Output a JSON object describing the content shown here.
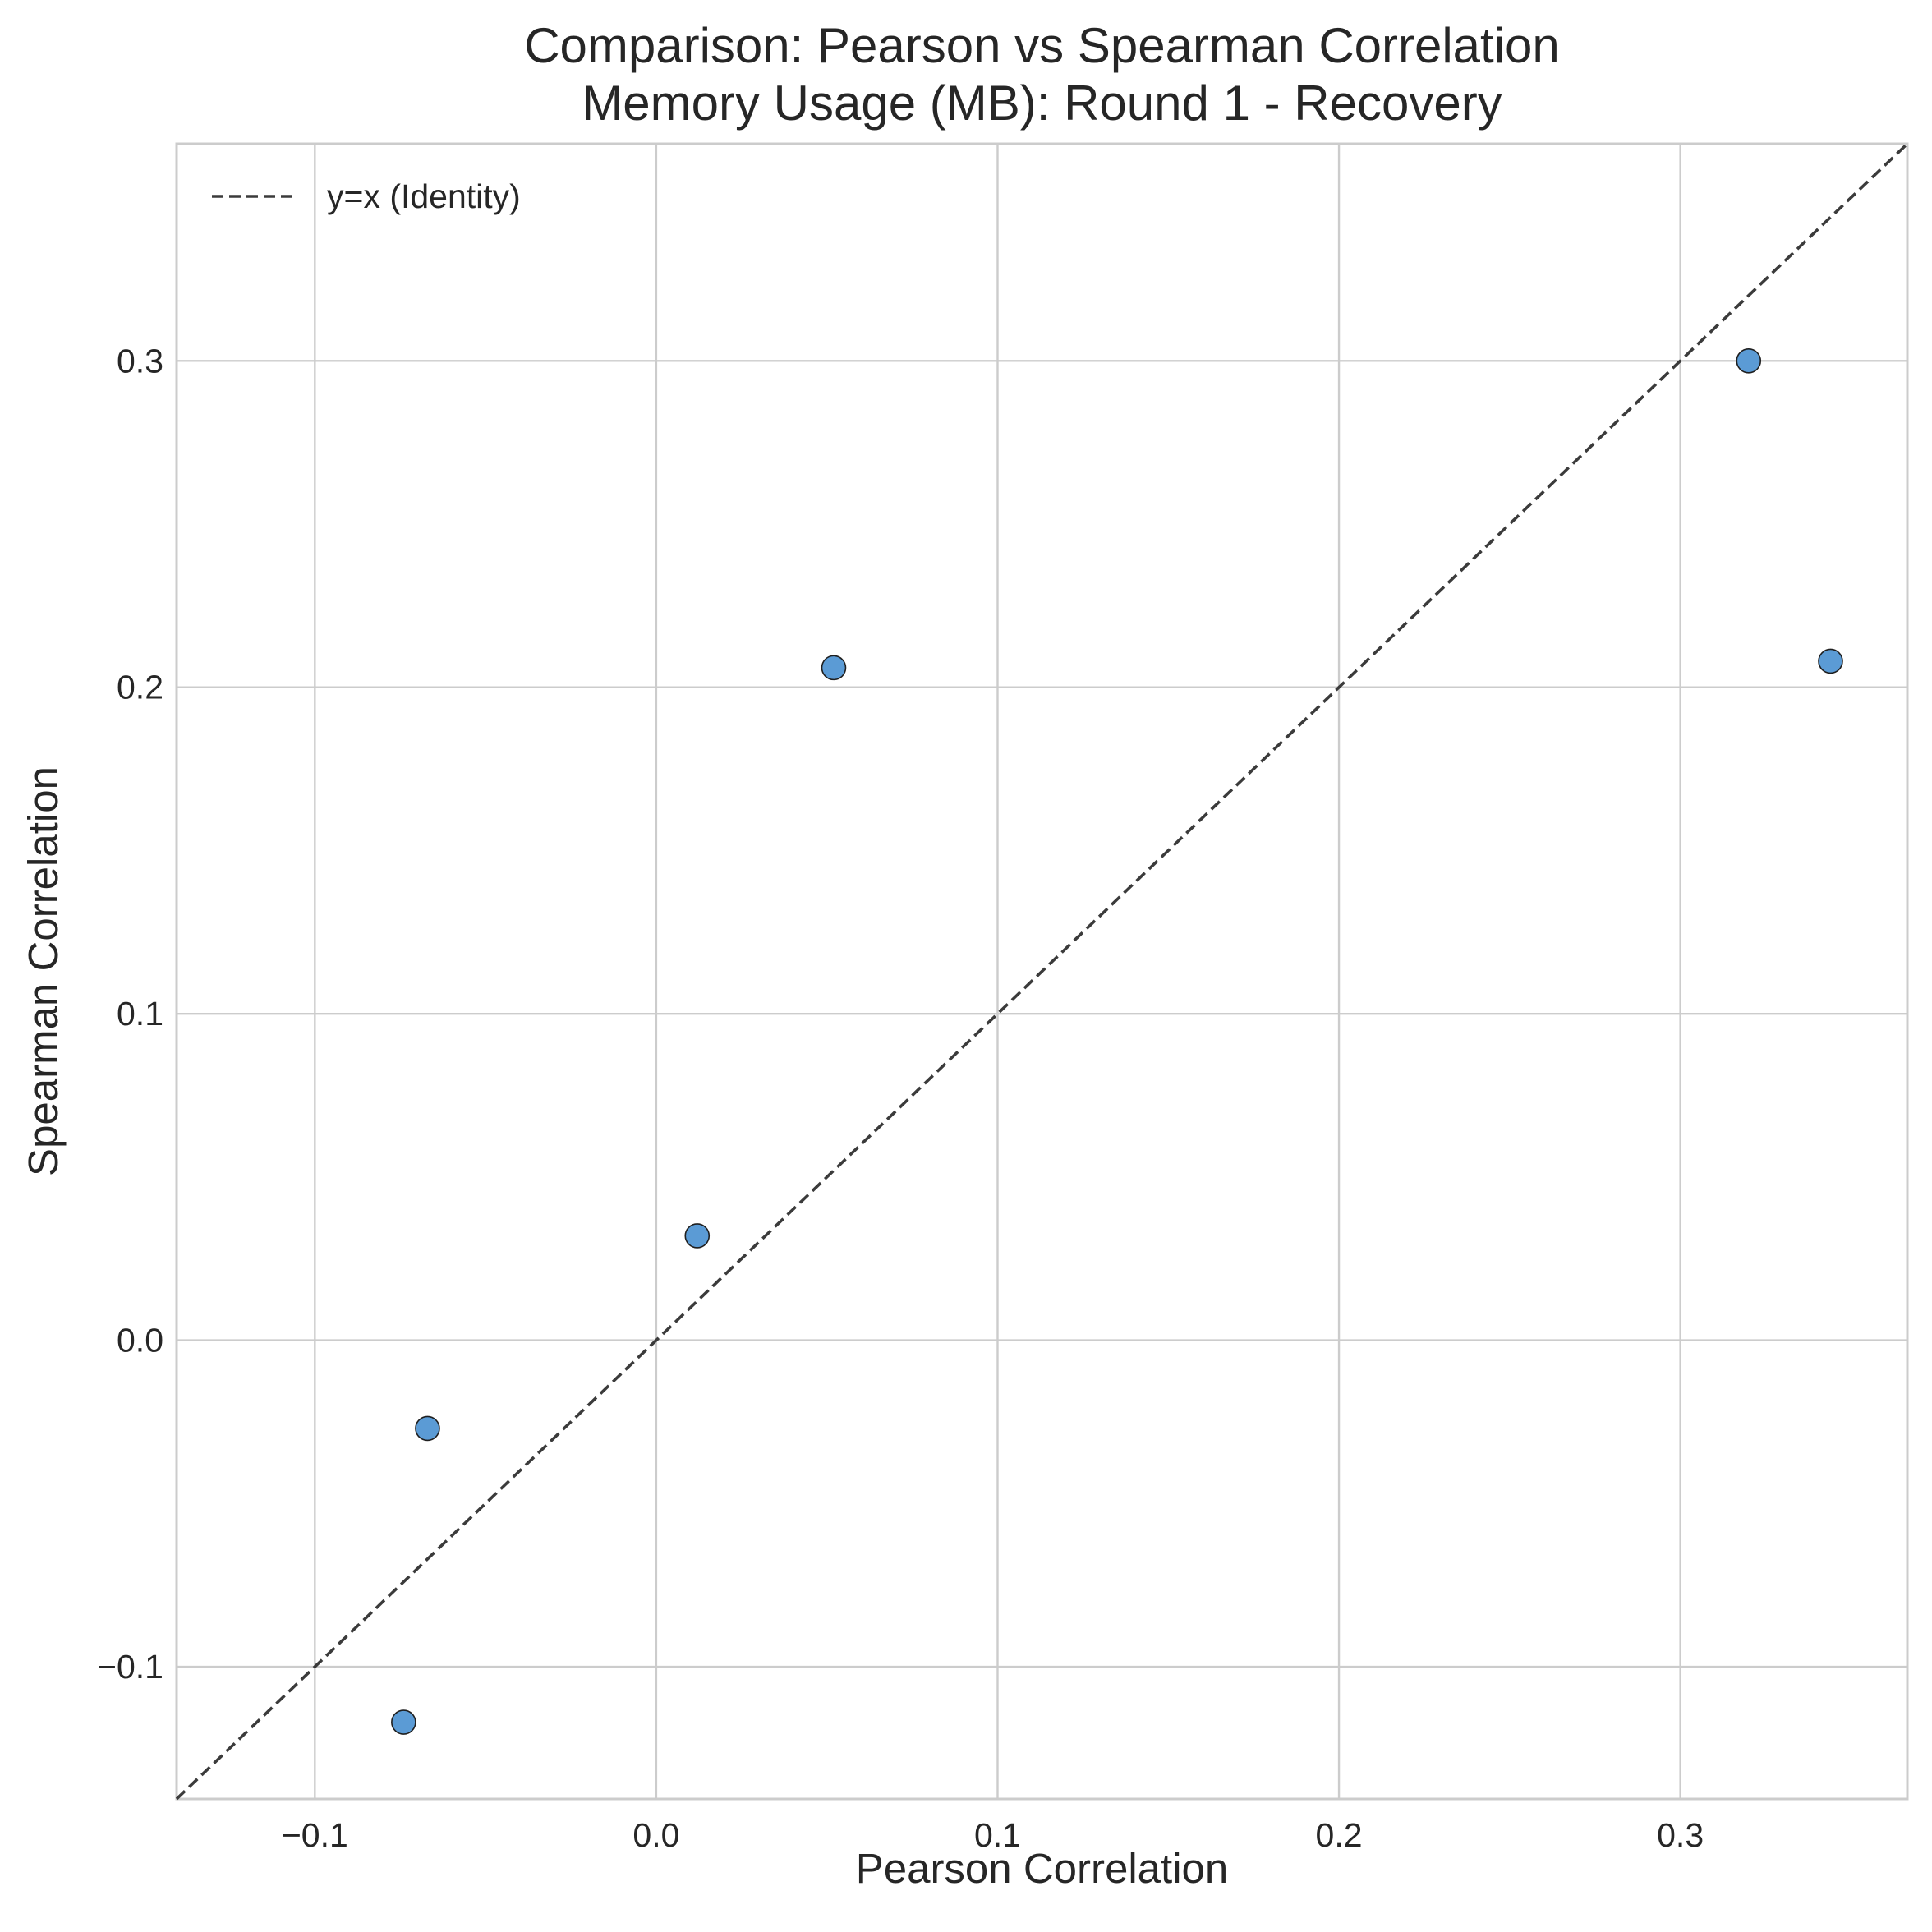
{
  "chart_data": {
    "type": "scatter",
    "title_lines": [
      "Comparison: Pearson vs Spearman Correlation",
      "Memory Usage (MB): Round 1 - Recovery"
    ],
    "xlabel": "Pearson Correlation",
    "ylabel": "Spearman Correlation",
    "xlim": [
      -0.1405,
      0.3665
    ],
    "ylim": [
      -0.1405,
      0.3665
    ],
    "xticks": [
      -0.1,
      0.0,
      0.1,
      0.2,
      0.3
    ],
    "yticks": [
      -0.1,
      0.0,
      0.1,
      0.2,
      0.3
    ],
    "xtick_labels": [
      "−0.1",
      "0.0",
      "0.1",
      "0.2",
      "0.3"
    ],
    "ytick_labels": [
      "−0.1",
      "0.0",
      "0.1",
      "0.2",
      "0.3"
    ],
    "grid": true,
    "legend": {
      "placement": "top-left",
      "entries": [
        {
          "label": "y=x (Identity)",
          "style": "dashed-line",
          "color": "#3b3b3b"
        }
      ]
    },
    "reference_line": {
      "type": "identity",
      "style": "dashed",
      "color": "#3b3b3b"
    },
    "points": [
      {
        "x": -0.074,
        "y": -0.117
      },
      {
        "x": -0.067,
        "y": -0.027
      },
      {
        "x": 0.012,
        "y": 0.032
      },
      {
        "x": 0.052,
        "y": 0.206
      },
      {
        "x": 0.32,
        "y": 0.3
      },
      {
        "x": 0.344,
        "y": 0.208
      }
    ],
    "marker_color": "#5b9bd5",
    "marker_edge_color": "#1f1f1f"
  }
}
